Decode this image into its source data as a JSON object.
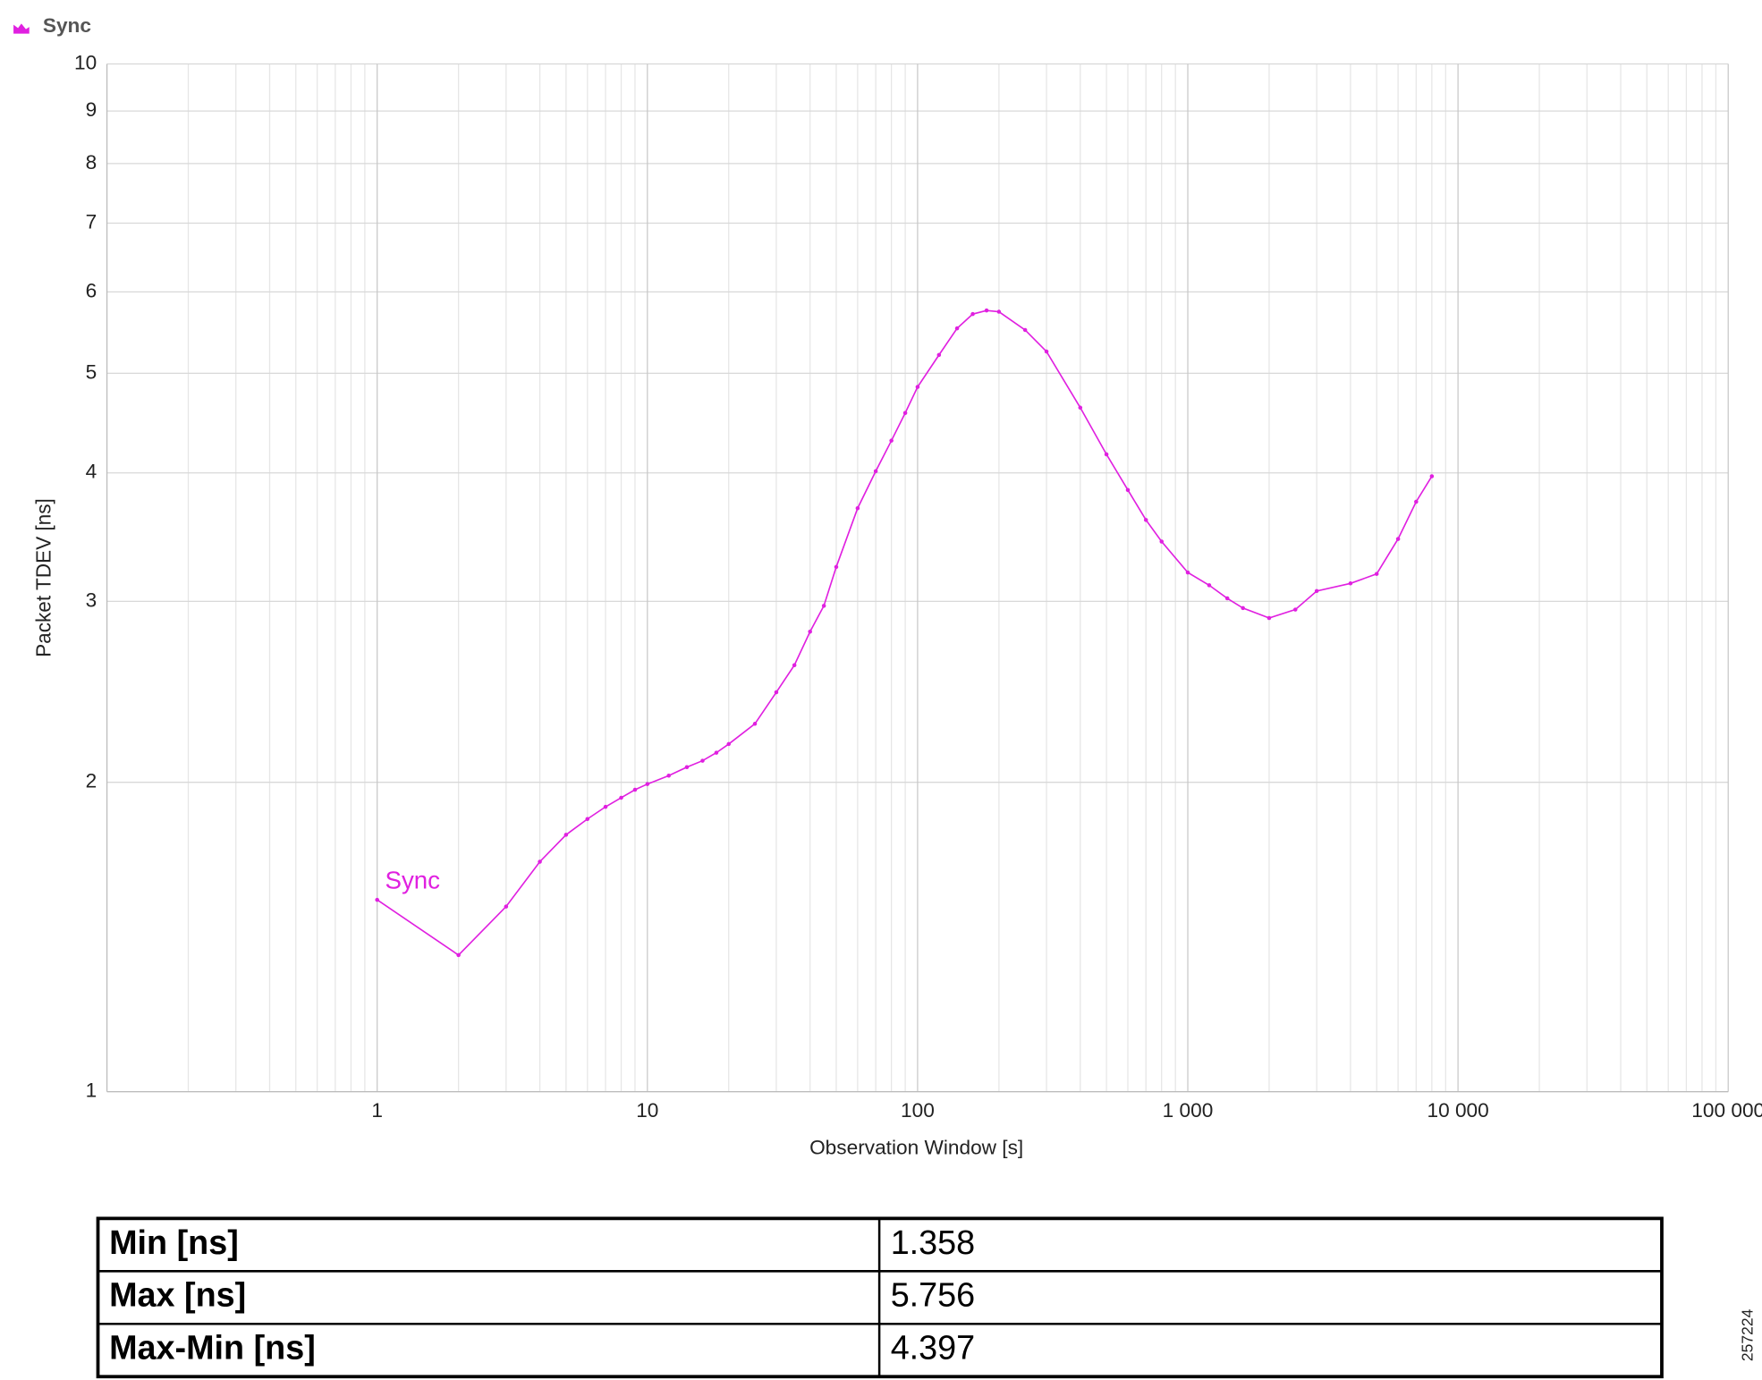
{
  "chart_data": {
    "type": "line",
    "title": "Sync",
    "xlabel": "Observation Window [s]",
    "ylabel": "Packet TDEV [ns]",
    "x": [
      1,
      2,
      3,
      4,
      5,
      6,
      7,
      8,
      9,
      10,
      12,
      14,
      16,
      18,
      20,
      25,
      30,
      35,
      40,
      45,
      50,
      60,
      70,
      80,
      90,
      100,
      120,
      140,
      160,
      180,
      200,
      250,
      300,
      400,
      500,
      600,
      700,
      800,
      1000,
      1200,
      1400,
      1600,
      2000,
      2500,
      3000,
      4000,
      5000,
      6000,
      7000,
      8000
    ],
    "series": [
      {
        "name": "Sync",
        "color": "#e020e0",
        "values": [
          1.537,
          1.358,
          1.514,
          1.674,
          1.778,
          1.842,
          1.893,
          1.932,
          1.967,
          1.992,
          2.03,
          2.069,
          2.099,
          2.137,
          2.179,
          2.28,
          2.447,
          2.6,
          2.803,
          2.97,
          3.24,
          3.696,
          4.015,
          4.3,
          4.575,
          4.85,
          5.21,
          5.53,
          5.71,
          5.756,
          5.74,
          5.51,
          5.25,
          4.63,
          4.17,
          3.85,
          3.6,
          3.43,
          3.2,
          3.11,
          3.02,
          2.955,
          2.89,
          2.945,
          3.07,
          3.123,
          3.19,
          3.45,
          3.75,
          3.97
        ]
      }
    ],
    "xlim": [
      0.1,
      100000
    ],
    "ylim": [
      1,
      10
    ],
    "xscale": "log",
    "yscale": "log",
    "xticks": [
      1,
      10,
      100,
      {
        "value": 1000,
        "label": "1 000"
      },
      {
        "value": 10000,
        "label": "10 000"
      },
      {
        "value": 100000,
        "label": "100 000"
      }
    ],
    "yticks": [
      1,
      2,
      3,
      4,
      5,
      6,
      7,
      8,
      9,
      10
    ],
    "grid": true
  },
  "table": {
    "rows": [
      [
        "Min [ns]",
        1.358
      ],
      [
        "Max [ns]",
        5.756
      ],
      [
        "Max-Min [ns]",
        4.397
      ]
    ]
  },
  "figure_id": "257224"
}
